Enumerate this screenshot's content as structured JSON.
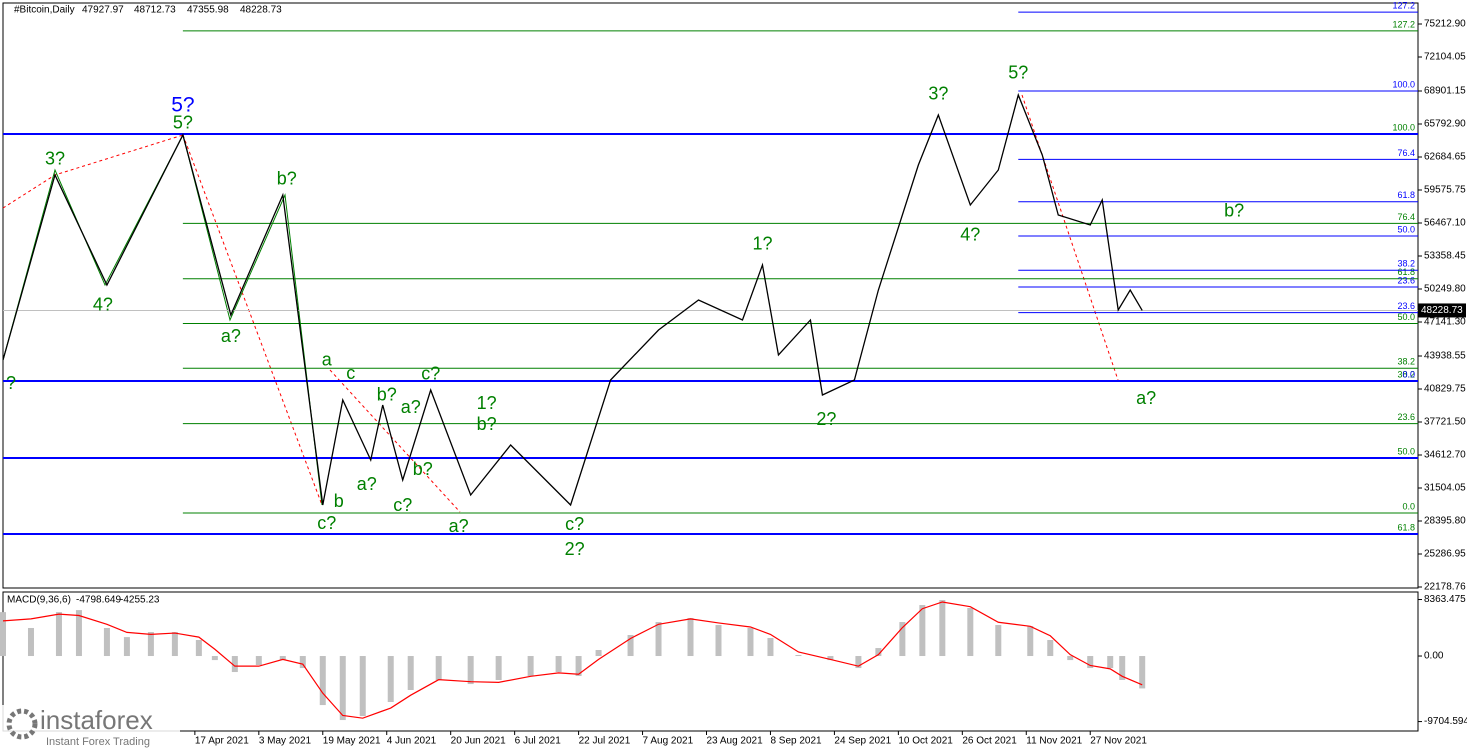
{
  "chart_data": [
    {
      "type": "line",
      "title": "#Bitcoin,Daily",
      "header_values": [
        47927.97,
        48712.73,
        47355.98,
        48228.73
      ],
      "logo": "instaforex",
      "logo_tagline": "Instant Forex Trading",
      "color": "#000000",
      "x": [
        "28 Feb 2021",
        "13 Mar 2021",
        "26 Mar 2021",
        "14 Apr 2021",
        "26 Apr 2021",
        "9 May 2021",
        "19 May 2021",
        "24 May 2021",
        "31 May 2021",
        "3 Jun 2021",
        "8 Jun 2021",
        "15 Jun 2021",
        "25 Jun 2021",
        "5 Jul 2021",
        "20 Jul 2021",
        "30 Jul 2021",
        "11 Aug 2021",
        "21 Aug 2021",
        "1 Sep 2021",
        "6 Sep 2021",
        "10 Sep 2021",
        "18 Sep 2021",
        "21 Sep 2021",
        "29 Sep 2021",
        "5 Oct 2021",
        "15 Oct 2021",
        "20 Oct 2021",
        "28 Oct 2021",
        "4 Nov 2021",
        "9 Nov 2021",
        "15 Nov 2021",
        "19 Nov 2021",
        "27 Nov 2021",
        "30 Nov 2021",
        "4 Dec 2021",
        "7 Dec 2021",
        "10 Dec 2021"
      ],
      "values": [
        43562,
        60989,
        50627,
        64757,
        47801,
        59105,
        29903,
        39794,
        34142,
        39323,
        32258,
        40736,
        30845,
        35555,
        29903,
        41678,
        46388,
        49214,
        47330,
        52511,
        44033,
        47330,
        40265,
        41678,
        50156,
        61931,
        66641,
        58163,
        61460,
        68525,
        62873,
        57221,
        56279,
        58634,
        48272,
        50156,
        48228.73
      ],
      "xlim": [
        "28 Feb 2021",
        "17 Feb 2022"
      ],
      "xticks": [
        "17 Apr 2021",
        "3 May 2021",
        "19 May 2021",
        "4 Jun 2021",
        "20 Jun 2021",
        "6 Jul 2021",
        "22 Jul 2021",
        "7 Aug 2021",
        "23 Aug 2021",
        "8 Sep 2021",
        "24 Sep 2021",
        "10 Oct 2021",
        "26 Oct 2021",
        "11 Nov 2021",
        "27 Nov 2021"
      ],
      "ylim": [
        22085,
        77190
      ],
      "yticks": [
        {
          "value": 75212.9,
          "label": "75212.90"
        },
        {
          "value": 72104.05,
          "label": "72104.05"
        },
        {
          "value": 68901.15,
          "label": "68901.15"
        },
        {
          "value": 65792.9,
          "label": "65792.90"
        },
        {
          "value": 62684.65,
          "label": "62684.65"
        },
        {
          "value": 59575.75,
          "label": "59575.75"
        },
        {
          "value": 56467.1,
          "label": "56467.10"
        },
        {
          "value": 53358.45,
          "label": "53358.45"
        },
        {
          "value": 50249.8,
          "label": "50249.80"
        },
        {
          "value": 47141.3,
          "label": "47141.30"
        },
        {
          "value": 43938.55,
          "label": "43938.55"
        },
        {
          "value": 40829.75,
          "label": "40829.75"
        },
        {
          "value": 37721.5,
          "label": "37721.50"
        },
        {
          "value": 34612.7,
          "label": "34612.70"
        },
        {
          "value": 31504.05,
          "label": "31504.05"
        },
        {
          "value": 28395.8,
          "label": "28395.80"
        },
        {
          "value": 25286.95,
          "label": "25286.95"
        },
        22178.76
      ],
      "fib_sets": [
        {
          "line_color": "#008000",
          "label_color": "#008000",
          "from": "14 Apr 2021",
          "levels": [
            {
              "label": "127.2",
              "value": 74562
            },
            {
              "label": "76.4",
              "value": 56426
            },
            {
              "label": "61.8",
              "value": 51213
            },
            {
              "label": "50.0",
              "value": 47000
            },
            {
              "label": "38.2",
              "value": 42787
            },
            {
              "label": "23.6",
              "value": 37574
            },
            {
              "label": "0.0",
              "value": 29148
            }
          ]
        },
        {
          "line_color": "#0000ff",
          "label_color": "#008000",
          "thick": true,
          "levels": [
            {
              "label": "100.0",
              "value": 64851
            },
            {
              "label": "38.2",
              "value": 41583
            },
            {
              "label": "50.0",
              "value": 34330
            },
            {
              "label": "61.8",
              "value": 27171
            }
          ]
        },
        {
          "line_color": "#0000ff",
          "label_color": "#0000ff",
          "from": "9 Nov 2021",
          "levels": [
            {
              "label": "127.2",
              "value": 76333
            },
            {
              "label": "100.0",
              "value": 68902
            },
            {
              "label": "76.4",
              "value": 62455
            },
            {
              "label": "61.8",
              "value": 58466
            },
            {
              "label": "50.0",
              "value": 55242
            },
            {
              "label": "38.2",
              "value": 52019
            },
            {
              "label": "23.6",
              "value": 50438
            },
            {
              "label": "23.6",
              "value": 48030
            },
            {
              "label": "0.0",
              "value": 41583
            }
          ]
        }
      ],
      "annotations": [
        {
          "text": "5?",
          "x": "14 Apr 2021",
          "y": 67488,
          "color": "#0000ff"
        },
        {
          "text": "5?",
          "x": "14 Apr 2021",
          "y": 65793,
          "color": "#008000"
        },
        {
          "text": "3?",
          "x": "13 Mar 2021",
          "y": 62402,
          "color": "#008000"
        },
        {
          "text": "4?",
          "x": "25 Mar 2021",
          "y": 48649,
          "color": "#008000"
        },
        {
          "text": "b?",
          "x": "10 May 2021",
          "y": 60518,
          "color": "#008000"
        },
        {
          "text": "a?",
          "x": "26 Apr 2021",
          "y": 45728,
          "color": "#008000"
        },
        {
          "text": "?",
          "x": "2 Mar 2021",
          "y": 41301,
          "color": "#008000"
        },
        {
          "text": "a",
          "x": "20 May 2021",
          "y": 43468,
          "color": "#008000"
        },
        {
          "text": "c",
          "x": "26 May 2021",
          "y": 42243,
          "color": "#008000"
        },
        {
          "text": "b",
          "x": "23 May 2021",
          "y": 30185,
          "color": "#008000"
        },
        {
          "text": "c?",
          "x": "20 May 2021",
          "y": 28113,
          "color": "#008000"
        },
        {
          "text": "a?",
          "x": "30 May 2021",
          "y": 31787,
          "color": "#008000"
        },
        {
          "text": "b?",
          "x": "4 Jun 2021",
          "y": 40171,
          "color": "#008000"
        },
        {
          "text": "a?",
          "x": "10 Jun 2021",
          "y": 39040,
          "color": "#008000"
        },
        {
          "text": "c?",
          "x": "15 Jun 2021",
          "y": 42149,
          "color": "#008000"
        },
        {
          "text": "b?",
          "x": "13 Jun 2021",
          "y": 33200,
          "color": "#008000"
        },
        {
          "text": "c?",
          "x": "8 Jun 2021",
          "y": 29809,
          "color": "#008000"
        },
        {
          "text": "1?",
          "x": "29 Jun 2021",
          "y": 39417,
          "color": "#008000"
        },
        {
          "text": "b?",
          "x": "29 Jun 2021",
          "y": 37439,
          "color": "#008000"
        },
        {
          "text": "a?",
          "x": "22 Jun 2021",
          "y": 27830,
          "color": "#008000"
        },
        {
          "text": "c?",
          "x": "21 Jul 2021",
          "y": 28019,
          "color": "#008000"
        },
        {
          "text": "2?",
          "x": "21 Jul 2021",
          "y": 25664,
          "color": "#008000"
        },
        {
          "text": "1?",
          "x": "6 Sep 2021",
          "y": 54395,
          "color": "#008000"
        },
        {
          "text": "2?",
          "x": "22 Sep 2021",
          "y": 37910,
          "color": "#008000"
        },
        {
          "text": "3?",
          "x": "20 Oct 2021",
          "y": 68525,
          "color": "#008000"
        },
        {
          "text": "4?",
          "x": "28 Oct 2021",
          "y": 55243,
          "color": "#008000"
        },
        {
          "text": "5?",
          "x": "9 Nov 2021",
          "y": 70503,
          "color": "#008000"
        },
        {
          "text": "b?",
          "x": "2 Jan 2022",
          "y": 57503,
          "color": "#008000"
        },
        {
          "text": "a?",
          "x": "11 Dec 2021",
          "y": 39888,
          "color": "#008000"
        }
      ]
    },
    {
      "type": "bar",
      "title": "MACD(9,36,6)",
      "x": [
        "28 Feb 2021",
        "7 Mar 2021",
        "14 Mar 2021",
        "19 Mar 2021",
        "26 Mar 2021",
        "31 Mar 2021",
        "6 Apr 2021",
        "12 Apr 2021",
        "18 Apr 2021",
        "22 Apr 2021",
        "27 Apr 2021",
        "3 May 2021",
        "9 May 2021",
        "14 May 2021",
        "19 May 2021",
        "24 May 2021",
        "29 May 2021",
        "5 Jun 2021",
        "10 Jun 2021",
        "17 Jun 2021",
        "25 Jun 2021",
        "2 Jul 2021",
        "10 Jul 2021",
        "17 Jul 2021",
        "22 Jul 2021",
        "27 Jul 2021",
        "4 Aug 2021",
        "11 Aug 2021",
        "19 Aug 2021",
        "26 Aug 2021",
        "3 Sep 2021",
        "8 Sep 2021",
        "15 Sep 2021",
        "23 Sep 2021",
        "30 Sep 2021",
        "5 Oct 2021",
        "11 Oct 2021",
        "16 Oct 2021",
        "21 Oct 2021",
        "28 Oct 2021",
        "4 Nov 2021",
        "12 Nov 2021",
        "17 Nov 2021",
        "22 Nov 2021",
        "27 Nov 2021",
        "2 Dec 2021",
        "5 Dec 2021",
        "10 Dec 2021"
      ],
      "series": [
        {
          "color": "#c0c0c0",
          "mark": "bar",
          "values": [
            6500,
            4150,
            6500,
            6800,
            4150,
            2800,
            3550,
            3550,
            2370,
            -600,
            -2370,
            -1330,
            -600,
            -1780,
            -7260,
            -9480,
            -8890,
            -6810,
            -5030,
            -3550,
            -4150,
            -3550,
            -2960,
            -2370,
            -2960,
            890,
            3110,
            5030,
            5630,
            4590,
            4150,
            2670,
            150,
            -600,
            -1780,
            1180,
            5030,
            7550,
            8290,
            7110,
            4590,
            4440,
            2370,
            -600,
            -1780,
            -1780,
            -3550,
            -4798.649
          ]
        },
        {
          "color": "#ff0000",
          "mark": "line",
          "values": [
            5200,
            5500,
            6200,
            6000,
            4700,
            3500,
            3200,
            3400,
            2800,
            1000,
            -1500,
            -1500,
            -500,
            -1200,
            -5500,
            -8800,
            -9200,
            -7700,
            -5800,
            -3500,
            -3800,
            -3900,
            -3000,
            -2500,
            -2700,
            -500,
            2600,
            4700,
            5500,
            4900,
            4300,
            3200,
            600,
            -500,
            -1500,
            200,
            4200,
            7000,
            8000,
            7300,
            5000,
            4400,
            3000,
            200,
            -1400,
            -1900,
            -3000,
            -4255.23
          ]
        }
      ],
      "ylim": [
        -11100,
        9478
      ],
      "yticks": [
        8363.475,
        {
          "value": 0,
          "label": "0.00"
        },
        -9704.594
      ]
    }
  ]
}
